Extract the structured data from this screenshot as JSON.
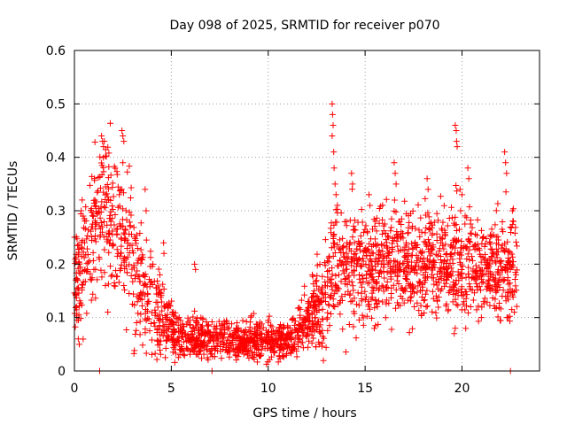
{
  "chart_data": {
    "type": "scatter",
    "title": "Day 098 of 2025, SRMTID for receiver p070",
    "xlabel": "GPS time / hours",
    "ylabel": "SRMTID / TECUs",
    "xlim": [
      0,
      24.0
    ],
    "ylim": [
      0,
      0.6
    ],
    "xticks": [
      0,
      5,
      10,
      15,
      20
    ],
    "xtick_labels": [
      "0",
      "5",
      "10",
      "15",
      "20"
    ],
    "yticks": [
      0,
      0.1,
      0.2,
      0.3,
      0.4,
      0.5,
      0.6
    ],
    "ytick_labels": [
      "0",
      "0.1",
      "0.2",
      "0.3",
      "0.4",
      "0.5",
      "0.6"
    ],
    "grid": true,
    "marker": "+",
    "color": "#ff0000",
    "trend": [
      {
        "x": 0.0,
        "y": 0.17
      },
      {
        "x": 0.5,
        "y": 0.22
      },
      {
        "x": 1.0,
        "y": 0.28
      },
      {
        "x": 1.5,
        "y": 0.3
      },
      {
        "x": 2.0,
        "y": 0.27
      },
      {
        "x": 2.5,
        "y": 0.25
      },
      {
        "x": 3.0,
        "y": 0.2
      },
      {
        "x": 3.5,
        "y": 0.16
      },
      {
        "x": 4.0,
        "y": 0.13
      },
      {
        "x": 4.5,
        "y": 0.1
      },
      {
        "x": 5.0,
        "y": 0.08
      },
      {
        "x": 5.5,
        "y": 0.065
      },
      {
        "x": 6.0,
        "y": 0.06
      },
      {
        "x": 7.0,
        "y": 0.06
      },
      {
        "x": 8.0,
        "y": 0.055
      },
      {
        "x": 9.0,
        "y": 0.055
      },
      {
        "x": 10.0,
        "y": 0.06
      },
      {
        "x": 11.0,
        "y": 0.055
      },
      {
        "x": 11.5,
        "y": 0.07
      },
      {
        "x": 12.0,
        "y": 0.1
      },
      {
        "x": 12.5,
        "y": 0.12
      },
      {
        "x": 13.0,
        "y": 0.14
      },
      {
        "x": 13.5,
        "y": 0.2
      },
      {
        "x": 14.0,
        "y": 0.2
      },
      {
        "x": 15.0,
        "y": 0.2
      },
      {
        "x": 16.0,
        "y": 0.21
      },
      {
        "x": 17.0,
        "y": 0.2
      },
      {
        "x": 18.0,
        "y": 0.21
      },
      {
        "x": 19.0,
        "y": 0.2
      },
      {
        "x": 20.0,
        "y": 0.21
      },
      {
        "x": 21.0,
        "y": 0.19
      },
      {
        "x": 22.0,
        "y": 0.19
      },
      {
        "x": 22.8,
        "y": 0.19
      }
    ],
    "spread": [
      {
        "x": 0.0,
        "y": 0.05
      },
      {
        "x": 1.0,
        "y": 0.08
      },
      {
        "x": 2.0,
        "y": 0.08
      },
      {
        "x": 3.0,
        "y": 0.07
      },
      {
        "x": 4.0,
        "y": 0.05
      },
      {
        "x": 5.0,
        "y": 0.03
      },
      {
        "x": 6.0,
        "y": 0.02
      },
      {
        "x": 11.0,
        "y": 0.02
      },
      {
        "x": 12.0,
        "y": 0.03
      },
      {
        "x": 13.0,
        "y": 0.06
      },
      {
        "x": 14.0,
        "y": 0.06
      },
      {
        "x": 22.8,
        "y": 0.055
      }
    ],
    "x_range": [
      0.0,
      22.85
    ],
    "sample_count": 2400,
    "spikes": [
      {
        "x": 1.4,
        "y": 0.44
      },
      {
        "x": 1.45,
        "y": 0.43
      },
      {
        "x": 1.5,
        "y": 0.42
      },
      {
        "x": 0.35,
        "y": 0.3
      },
      {
        "x": 0.4,
        "y": 0.32
      },
      {
        "x": 0.45,
        "y": 0.29
      },
      {
        "x": 0.2,
        "y": 0.06
      },
      {
        "x": 0.25,
        "y": 0.05
      },
      {
        "x": 2.45,
        "y": 0.45
      },
      {
        "x": 2.5,
        "y": 0.44
      },
      {
        "x": 2.55,
        "y": 0.43
      },
      {
        "x": 2.5,
        "y": 0.39
      },
      {
        "x": 3.65,
        "y": 0.34
      },
      {
        "x": 3.7,
        "y": 0.3
      },
      {
        "x": 4.6,
        "y": 0.24
      },
      {
        "x": 4.62,
        "y": 0.22
      },
      {
        "x": 6.2,
        "y": 0.2
      },
      {
        "x": 6.25,
        "y": 0.19
      },
      {
        "x": 13.3,
        "y": 0.5
      },
      {
        "x": 13.32,
        "y": 0.48
      },
      {
        "x": 13.35,
        "y": 0.46
      },
      {
        "x": 13.3,
        "y": 0.44
      },
      {
        "x": 13.38,
        "y": 0.41
      },
      {
        "x": 13.4,
        "y": 0.38
      },
      {
        "x": 13.45,
        "y": 0.35
      },
      {
        "x": 13.5,
        "y": 0.33
      },
      {
        "x": 14.3,
        "y": 0.37
      },
      {
        "x": 14.35,
        "y": 0.35
      },
      {
        "x": 15.2,
        "y": 0.33
      },
      {
        "x": 15.25,
        "y": 0.31
      },
      {
        "x": 16.5,
        "y": 0.39
      },
      {
        "x": 16.55,
        "y": 0.37
      },
      {
        "x": 16.6,
        "y": 0.35
      },
      {
        "x": 18.2,
        "y": 0.36
      },
      {
        "x": 18.25,
        "y": 0.34
      },
      {
        "x": 19.65,
        "y": 0.46
      },
      {
        "x": 19.7,
        "y": 0.45
      },
      {
        "x": 19.72,
        "y": 0.43
      },
      {
        "x": 19.75,
        "y": 0.42
      },
      {
        "x": 19.9,
        "y": 0.34
      },
      {
        "x": 20.0,
        "y": 0.33
      },
      {
        "x": 20.3,
        "y": 0.38
      },
      {
        "x": 20.35,
        "y": 0.36
      },
      {
        "x": 22.2,
        "y": 0.41
      },
      {
        "x": 22.25,
        "y": 0.39
      },
      {
        "x": 22.3,
        "y": 0.37
      },
      {
        "x": 22.6,
        "y": 0.3
      },
      {
        "x": 22.65,
        "y": 0.28
      },
      {
        "x": 19.6,
        "y": 0.07
      },
      {
        "x": 19.65,
        "y": 0.08
      },
      {
        "x": 21.0,
        "y": 0.1
      },
      {
        "x": 22.7,
        "y": 0.11
      },
      {
        "x": 1.3,
        "y": 0.0
      },
      {
        "x": 7.1,
        "y": 0.0
      },
      {
        "x": 22.5,
        "y": 0.0
      }
    ]
  }
}
